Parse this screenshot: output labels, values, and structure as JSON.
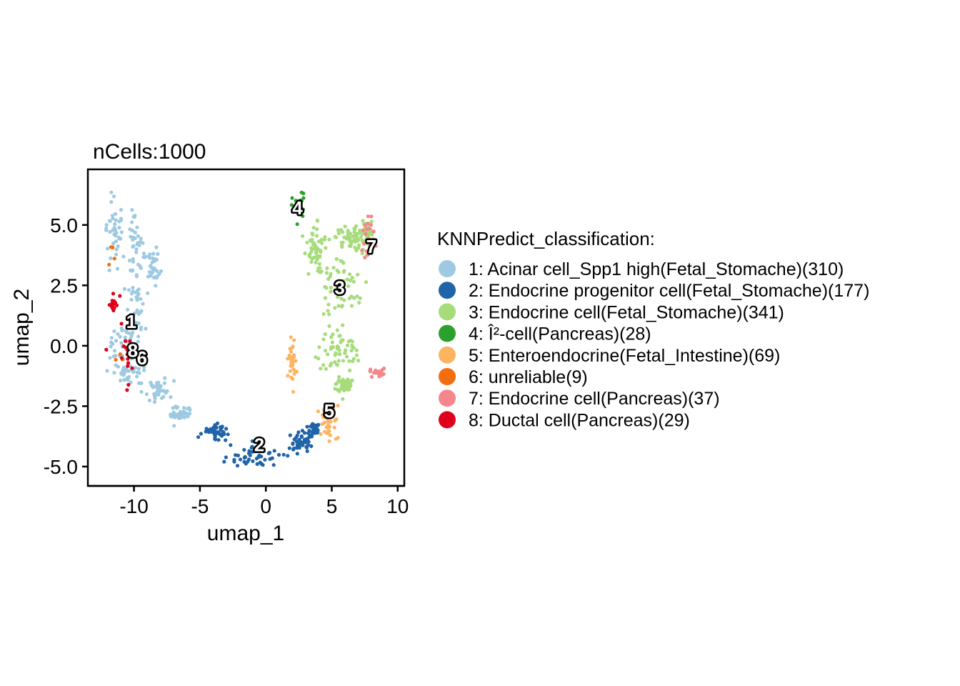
{
  "chart_data": {
    "type": "scatter",
    "title": "nCells:1000",
    "xlabel": "umap_1",
    "ylabel": "umap_2",
    "xlim": [
      -13.5,
      10.5
    ],
    "ylim": [
      -5.8,
      7.3
    ],
    "xticks": [
      -10,
      -5,
      0,
      5,
      10
    ],
    "xtick_labels": [
      "-10",
      "-5",
      "0",
      "5",
      "10"
    ],
    "yticks": [
      -5,
      -2.5,
      0,
      2.5,
      5
    ],
    "ytick_labels": [
      "-5.0",
      "-2.5",
      "0.0",
      "2.5",
      "5.0"
    ],
    "grid": false,
    "legend": {
      "title": "KNNPredict_classification:",
      "placement": "right"
    },
    "series": [
      {
        "id": "1",
        "name": "1: Acinar cell_Spp1 high(Fetal_Stomache)(310)",
        "color": "#9ecae1",
        "count": 310,
        "label_pos": [
          -10.2,
          1.0
        ],
        "regions": [
          [
            -11.5,
            4.6,
            0.7,
            1.4
          ],
          [
            -10.0,
            4.0,
            0.8,
            1.6
          ],
          [
            -9.8,
            1.6,
            0.8,
            1.4
          ],
          [
            -10.8,
            0.2,
            1.3,
            1.0
          ],
          [
            -10.3,
            -1.1,
            1.2,
            0.5
          ],
          [
            -8.2,
            -1.8,
            1.2,
            0.4
          ],
          [
            -6.5,
            -2.8,
            0.9,
            0.3
          ],
          [
            -8.5,
            3.2,
            0.4,
            0.8
          ]
        ]
      },
      {
        "id": "2",
        "name": "2: Endocrine progenitor cell(Fetal_Stomache)(177)",
        "color": "#1f63a8",
        "count": 177,
        "label_pos": [
          -0.5,
          -4.1
        ],
        "regions": [
          [
            -3.8,
            -3.6,
            1.0,
            0.4
          ],
          [
            -0.5,
            -4.6,
            2.4,
            0.4
          ],
          [
            2.6,
            -4.0,
            1.1,
            0.4
          ],
          [
            3.7,
            -3.5,
            0.4,
            0.3
          ]
        ]
      },
      {
        "id": "3",
        "name": "3: Endocrine cell(Fetal_Stomache)(341)",
        "color": "#a6dc7a",
        "count": 341,
        "label_pos": [
          5.6,
          2.4
        ],
        "regions": [
          [
            5.5,
            2.3,
            1.8,
            1.5
          ],
          [
            5.5,
            -0.2,
            1.6,
            0.9
          ],
          [
            6.5,
            4.5,
            1.2,
            0.5
          ],
          [
            3.7,
            4.0,
            0.7,
            1.0
          ],
          [
            7.7,
            4.6,
            0.4,
            0.6
          ],
          [
            6.0,
            -1.6,
            0.6,
            0.3
          ]
        ]
      },
      {
        "id": "4",
        "name": "4: Î²-cell(Pancreas)(28)",
        "color": "#2ca02c",
        "count": 28,
        "label_pos": [
          2.4,
          5.7
        ],
        "regions": [
          [
            2.5,
            5.7,
            0.5,
            0.6
          ]
        ]
      },
      {
        "id": "5",
        "name": "5: Enteroendocrine(Fetal_Intestine)(69)",
        "color": "#fdb462",
        "count": 69,
        "label_pos": [
          4.8,
          -2.7
        ],
        "regions": [
          [
            4.8,
            -3.3,
            0.8,
            0.8
          ],
          [
            2.0,
            -0.6,
            0.3,
            1.0
          ]
        ]
      },
      {
        "id": "6",
        "name": "6: unreliable(9)",
        "color": "#f46d0f",
        "count": 9,
        "label_pos": [
          -9.4,
          -0.5
        ],
        "regions": [
          [
            -10.5,
            -0.6,
            1.0,
            0.9
          ],
          [
            -11.8,
            3.8,
            0.3,
            0.4
          ]
        ]
      },
      {
        "id": "7",
        "name": "7: Endocrine cell(Pancreas)(37)",
        "color": "#f4868c",
        "count": 37,
        "label_pos": [
          8.0,
          4.1
        ],
        "regions": [
          [
            7.7,
            4.6,
            0.6,
            0.9
          ],
          [
            8.5,
            -1.1,
            0.6,
            0.2
          ]
        ]
      },
      {
        "id": "8",
        "name": "8: Ductal cell(Pancreas)(29)",
        "color": "#e0001b",
        "count": 29,
        "label_pos": [
          -10.1,
          -0.2
        ],
        "regions": [
          [
            -10.6,
            -0.4,
            1.0,
            1.2
          ],
          [
            -11.6,
            1.7,
            0.4,
            0.6
          ]
        ]
      }
    ]
  }
}
